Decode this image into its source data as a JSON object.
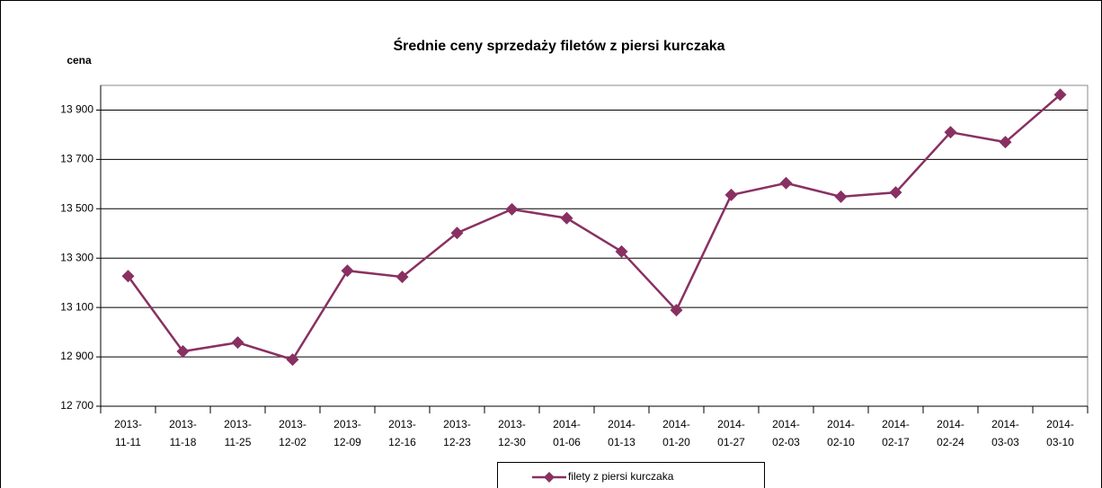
{
  "chart_data": {
    "type": "line",
    "title": "Średnie ceny sprzedaży filetów z piersi kurczaka",
    "ylabel": "cena",
    "categories": [
      "2013-11-11",
      "2013-11-18",
      "2013-11-25",
      "2013-12-02",
      "2013-12-09",
      "2013-12-16",
      "2013-12-23",
      "2013-12-30",
      "2014-01-06",
      "2014-01-13",
      "2014-01-20",
      "2014-01-27",
      "2014-02-03",
      "2014-02-10",
      "2014-02-17",
      "2014-02-24",
      "2014-03-03",
      "2014-03-10"
    ],
    "series": [
      {
        "name": "filety z piersi kurczaka",
        "color": "#893062",
        "values": [
          13227,
          12922,
          12958,
          12889,
          13249,
          13224,
          13402,
          13498,
          13462,
          13327,
          13089,
          13556,
          13604,
          13549,
          13566,
          13810,
          13770,
          13962
        ]
      }
    ],
    "ylim": [
      12700,
      14000
    ],
    "yticks": [
      {
        "value": 12700,
        "label": "12 700"
      },
      {
        "value": 12900,
        "label": "12 900"
      },
      {
        "value": 13100,
        "label": "13 100"
      },
      {
        "value": 13300,
        "label": "13 300"
      },
      {
        "value": 13500,
        "label": "13 500"
      },
      {
        "value": 13700,
        "label": "13 700"
      },
      {
        "value": 13900,
        "label": "13 900"
      }
    ],
    "grid": true
  }
}
